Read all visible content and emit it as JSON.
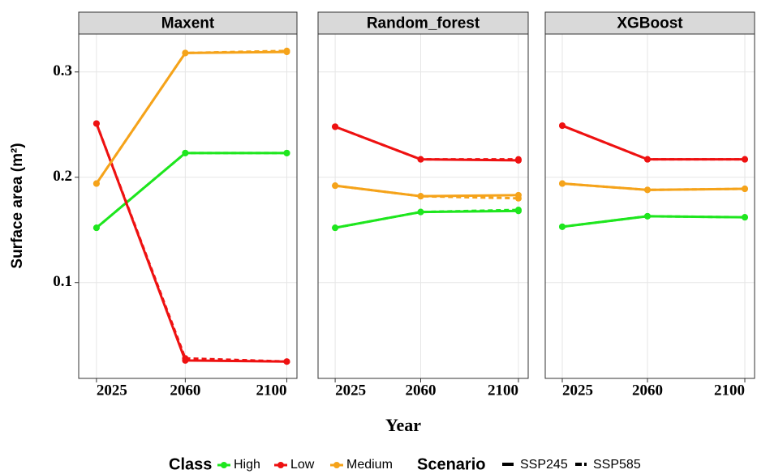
{
  "shared": {
    "ylabel": "Surface area (m²)",
    "xlabel": "Year",
    "legend": {
      "class_title": "Class",
      "classes": [
        {
          "name": "High",
          "color": "#1ee61e"
        },
        {
          "name": "Low",
          "color": "#ee1111"
        },
        {
          "name": "Medium",
          "color": "#f5a31a"
        }
      ],
      "scenario_title": "Scenario",
      "scenarios": [
        {
          "name": "SSP245",
          "dashed": false
        },
        {
          "name": "SSP585",
          "dashed": true
        }
      ]
    }
  },
  "chart_data": [
    {
      "type": "line",
      "title": "Maxent",
      "x": [
        2025,
        2060,
        2100
      ],
      "xlim": [
        2018,
        2104
      ],
      "xticks": [
        2025,
        2060,
        2100
      ],
      "ylim": [
        0.009,
        0.336
      ],
      "yticks": [
        0.1,
        0.2,
        0.3
      ],
      "grid": true,
      "series": [
        {
          "class": 0,
          "scenario": 0,
          "values": [
            0.152,
            0.223,
            0.223
          ]
        },
        {
          "class": 0,
          "scenario": 1,
          "values": [
            0.152,
            0.223,
            0.223
          ]
        },
        {
          "class": 1,
          "scenario": 0,
          "values": [
            0.251,
            0.026,
            0.025
          ]
        },
        {
          "class": 1,
          "scenario": 1,
          "values": [
            0.251,
            0.028,
            0.025
          ]
        },
        {
          "class": 2,
          "scenario": 0,
          "values": [
            0.194,
            0.318,
            0.319
          ]
        },
        {
          "class": 2,
          "scenario": 1,
          "values": [
            0.194,
            0.318,
            0.32
          ]
        }
      ]
    },
    {
      "type": "line",
      "title": "Random_forest",
      "x": [
        2025,
        2060,
        2100
      ],
      "xlim": [
        2018,
        2104
      ],
      "xticks": [
        2025,
        2060,
        2100
      ],
      "ylim": [
        0.009,
        0.336
      ],
      "yticks": [
        0.1,
        0.2,
        0.3
      ],
      "grid": true,
      "series": [
        {
          "class": 0,
          "scenario": 0,
          "values": [
            0.152,
            0.167,
            0.168
          ]
        },
        {
          "class": 0,
          "scenario": 1,
          "values": [
            0.152,
            0.167,
            0.169
          ]
        },
        {
          "class": 1,
          "scenario": 0,
          "values": [
            0.248,
            0.217,
            0.216
          ]
        },
        {
          "class": 1,
          "scenario": 1,
          "values": [
            0.248,
            0.217,
            0.217
          ]
        },
        {
          "class": 2,
          "scenario": 0,
          "values": [
            0.192,
            0.182,
            0.183
          ]
        },
        {
          "class": 2,
          "scenario": 1,
          "values": [
            0.192,
            0.182,
            0.18
          ]
        }
      ]
    },
    {
      "type": "line",
      "title": "XGBoost",
      "x": [
        2025,
        2060,
        2100
      ],
      "xlim": [
        2018,
        2104
      ],
      "xticks": [
        2025,
        2060,
        2100
      ],
      "ylim": [
        0.009,
        0.336
      ],
      "yticks": [
        0.1,
        0.2,
        0.3
      ],
      "grid": true,
      "series": [
        {
          "class": 0,
          "scenario": 0,
          "values": [
            0.153,
            0.163,
            0.162
          ]
        },
        {
          "class": 0,
          "scenario": 1,
          "values": [
            0.153,
            0.163,
            0.162
          ]
        },
        {
          "class": 1,
          "scenario": 0,
          "values": [
            0.249,
            0.217,
            0.217
          ]
        },
        {
          "class": 1,
          "scenario": 1,
          "values": [
            0.249,
            0.217,
            0.217
          ]
        },
        {
          "class": 2,
          "scenario": 0,
          "values": [
            0.194,
            0.188,
            0.189
          ]
        },
        {
          "class": 2,
          "scenario": 1,
          "values": [
            0.194,
            0.188,
            0.189
          ]
        }
      ]
    }
  ]
}
